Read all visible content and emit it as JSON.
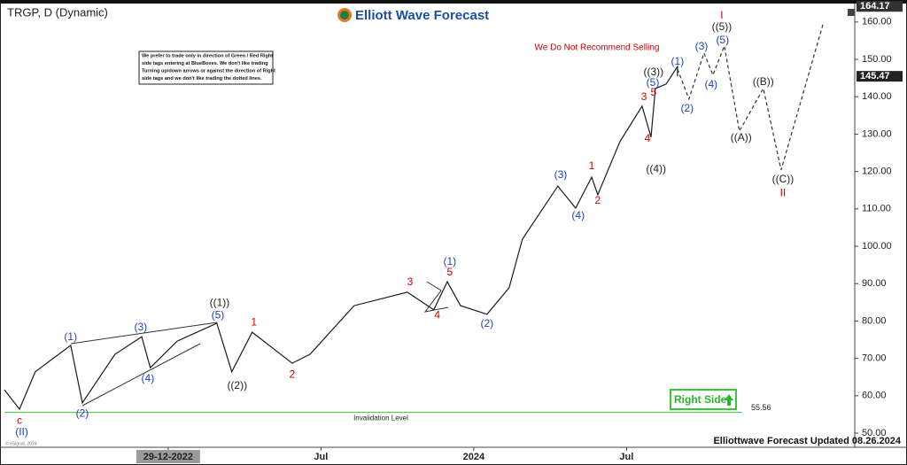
{
  "chart_data": {
    "type": "line",
    "title": "TRGP, D (Dynamic)",
    "brand": "Elliott Wave Forecast",
    "warning": "We Do Not Recommend Selling",
    "disclaimer": [
      "We prefer to trade only in direction of Green / Red Right",
      "side tags entering at BlueBoxes. We don't like trading",
      "Turning up/down arrows or against the direction of Right",
      "side tags and we don't like trading the dotted lines."
    ],
    "footer": "Elliottwave Forecast Updated 08.26.2024",
    "copyright": "© eSignal, 2024",
    "right_side_tag": "Right Side",
    "invalidation": {
      "label": "Invalidation Level",
      "value": 55.56,
      "color": "#37c837"
    },
    "axis_max_label": 164.17,
    "last_price": 145.47,
    "xlim": [
      -6.43,
      26.96
    ],
    "xticks": [
      {
        "value": 0,
        "label": "29-12-2022"
      },
      {
        "value": 6,
        "label": "Jul"
      },
      {
        "value": 12,
        "label": "2024"
      },
      {
        "value": 18,
        "label": "Jul"
      }
    ],
    "ylim": [
      47.4,
      164.7
    ],
    "yticks": [
      {
        "value": 50,
        "label": "50.00"
      },
      {
        "value": 60,
        "label": "60.00"
      },
      {
        "value": 70,
        "label": "70.00"
      },
      {
        "value": 80,
        "label": "80.00"
      },
      {
        "value": 90,
        "label": "90.00"
      },
      {
        "value": 100,
        "label": "100.00"
      },
      {
        "value": 110,
        "label": "110.00"
      },
      {
        "value": 120,
        "label": "120.00"
      },
      {
        "value": 130,
        "label": "130.00"
      },
      {
        "value": 140,
        "label": "140.00"
      },
      {
        "value": 150,
        "label": "150.00"
      },
      {
        "value": 160,
        "label": "160.00"
      }
    ],
    "price": {
      "color": "#1a1a1a",
      "x": [
        -6.43,
        -5.84,
        -5.22,
        -3.83,
        -3.37,
        -2.09,
        -1.04,
        -0.7,
        0.35,
        1.91,
        2.5,
        3.3,
        4.87,
        5.57,
        7.3,
        9.39,
        10.43,
        10.96,
        11.48,
        12.52,
        13.39,
        13.91,
        15.3,
        16.0,
        16.63,
        16.87,
        17.74,
        18.61,
        18.96,
        19.13,
        19.55,
        20.0,
        20.0
      ],
      "values": [
        61.6,
        56.4,
        66.4,
        73.5,
        58.1,
        71.1,
        75.8,
        67.5,
        74.6,
        79.4,
        66.4,
        77.0,
        68.7,
        71.1,
        84.1,
        87.7,
        83.0,
        90.5,
        84.1,
        81.8,
        88.9,
        101.9,
        116.1,
        110.2,
        118.5,
        113.8,
        128.0,
        137.5,
        129.2,
        142.2,
        143.4,
        148.1,
        145.47
      ]
    },
    "projection": {
      "color": "#333333",
      "dashed": true,
      "x": [
        20.0,
        20.45,
        21.04,
        21.39,
        21.84,
        22.43,
        23.37,
        24.07,
        25.74
      ],
      "values": [
        147.4,
        139.4,
        151.7,
        145.8,
        153.6,
        130.8,
        142.2,
        120.4,
        160.0
      ]
    },
    "wave_labels": [
      {
        "text": "c",
        "color": "#d00000",
        "x": -5.84,
        "y": 53.3
      },
      {
        "text": "(II)",
        "color": "#1f3fbf",
        "x": -5.75,
        "y": 50.2
      },
      {
        "text": "(1)",
        "color": "#1f3fbf",
        "x": -3.83,
        "y": 75.6
      },
      {
        "text": "(2)",
        "color": "#1f3fbf",
        "x": -3.37,
        "y": 55.2
      },
      {
        "text": "(3)",
        "color": "#1f3fbf",
        "x": -1.08,
        "y": 78.2
      },
      {
        "text": "(4)",
        "color": "#1f3fbf",
        "x": -0.8,
        "y": 64.5
      },
      {
        "text": "((1))",
        "color": "#222222",
        "x": 2.02,
        "y": 84.8
      },
      {
        "text": "(5)",
        "color": "#1f3fbf",
        "x": 1.95,
        "y": 81.5
      },
      {
        "text": "((2))",
        "color": "#222222",
        "x": 2.71,
        "y": 62.6
      },
      {
        "text": "1",
        "color": "#d00000",
        "x": 3.37,
        "y": 79.6
      },
      {
        "text": "2",
        "color": "#d00000",
        "x": 4.87,
        "y": 65.6
      },
      {
        "text": "3",
        "color": "#d00000",
        "x": 9.5,
        "y": 90.3
      },
      {
        "text": "4",
        "color": "#d00000",
        "x": 10.57,
        "y": 81.5
      },
      {
        "text": "5",
        "color": "#d00000",
        "x": 11.06,
        "y": 92.9
      },
      {
        "text": "(1)",
        "color": "#1f3fbf",
        "x": 11.06,
        "y": 95.8
      },
      {
        "text": "(2)",
        "color": "#1f3fbf",
        "x": 12.52,
        "y": 79.2
      },
      {
        "text": "(3)",
        "color": "#1f3fbf",
        "x": 15.41,
        "y": 119.0
      },
      {
        "text": "(4)",
        "color": "#1f3fbf",
        "x": 16.1,
        "y": 108.1
      },
      {
        "text": "1",
        "color": "#d00000",
        "x": 16.63,
        "y": 121.4
      },
      {
        "text": "2",
        "color": "#d00000",
        "x": 16.87,
        "y": 112.1
      },
      {
        "text": "3",
        "color": "#d00000",
        "x": 18.68,
        "y": 139.8
      },
      {
        "text": "4",
        "color": "#d00000",
        "x": 18.82,
        "y": 128.7
      },
      {
        "text": "5",
        "color": "#d00000",
        "x": 19.06,
        "y": 141.0
      },
      {
        "text": "(5)",
        "color": "#1f3fbf",
        "x": 19.03,
        "y": 143.6
      },
      {
        "text": "((3))",
        "color": "#222222",
        "x": 19.06,
        "y": 146.5
      },
      {
        "text": "((4))",
        "color": "#222222",
        "x": 19.16,
        "y": 120.6
      },
      {
        "text": "(1)",
        "color": "#1f3fbf",
        "x": 20.0,
        "y": 149.3
      },
      {
        "text": "(2)",
        "color": "#1f3fbf",
        "x": 20.38,
        "y": 136.8
      },
      {
        "text": "(3)",
        "color": "#1f3fbf",
        "x": 20.94,
        "y": 153.4
      },
      {
        "text": "(4)",
        "color": "#1f3fbf",
        "x": 21.32,
        "y": 143.2
      },
      {
        "text": "(5)",
        "color": "#1f3fbf",
        "x": 21.77,
        "y": 155.0
      },
      {
        "text": "((5))",
        "color": "#222222",
        "x": 21.74,
        "y": 158.6
      },
      {
        "text": "I",
        "color": "#d00000",
        "x": 21.74,
        "y": 161.7
      },
      {
        "text": "((A))",
        "color": "#222222",
        "x": 22.5,
        "y": 128.9
      },
      {
        "text": "((B))",
        "color": "#222222",
        "x": 23.37,
        "y": 143.9
      },
      {
        "text": "((C))",
        "color": "#222222",
        "x": 24.14,
        "y": 117.8
      },
      {
        "text": "II",
        "color": "#d00000",
        "x": 24.14,
        "y": 114.2
      }
    ]
  }
}
